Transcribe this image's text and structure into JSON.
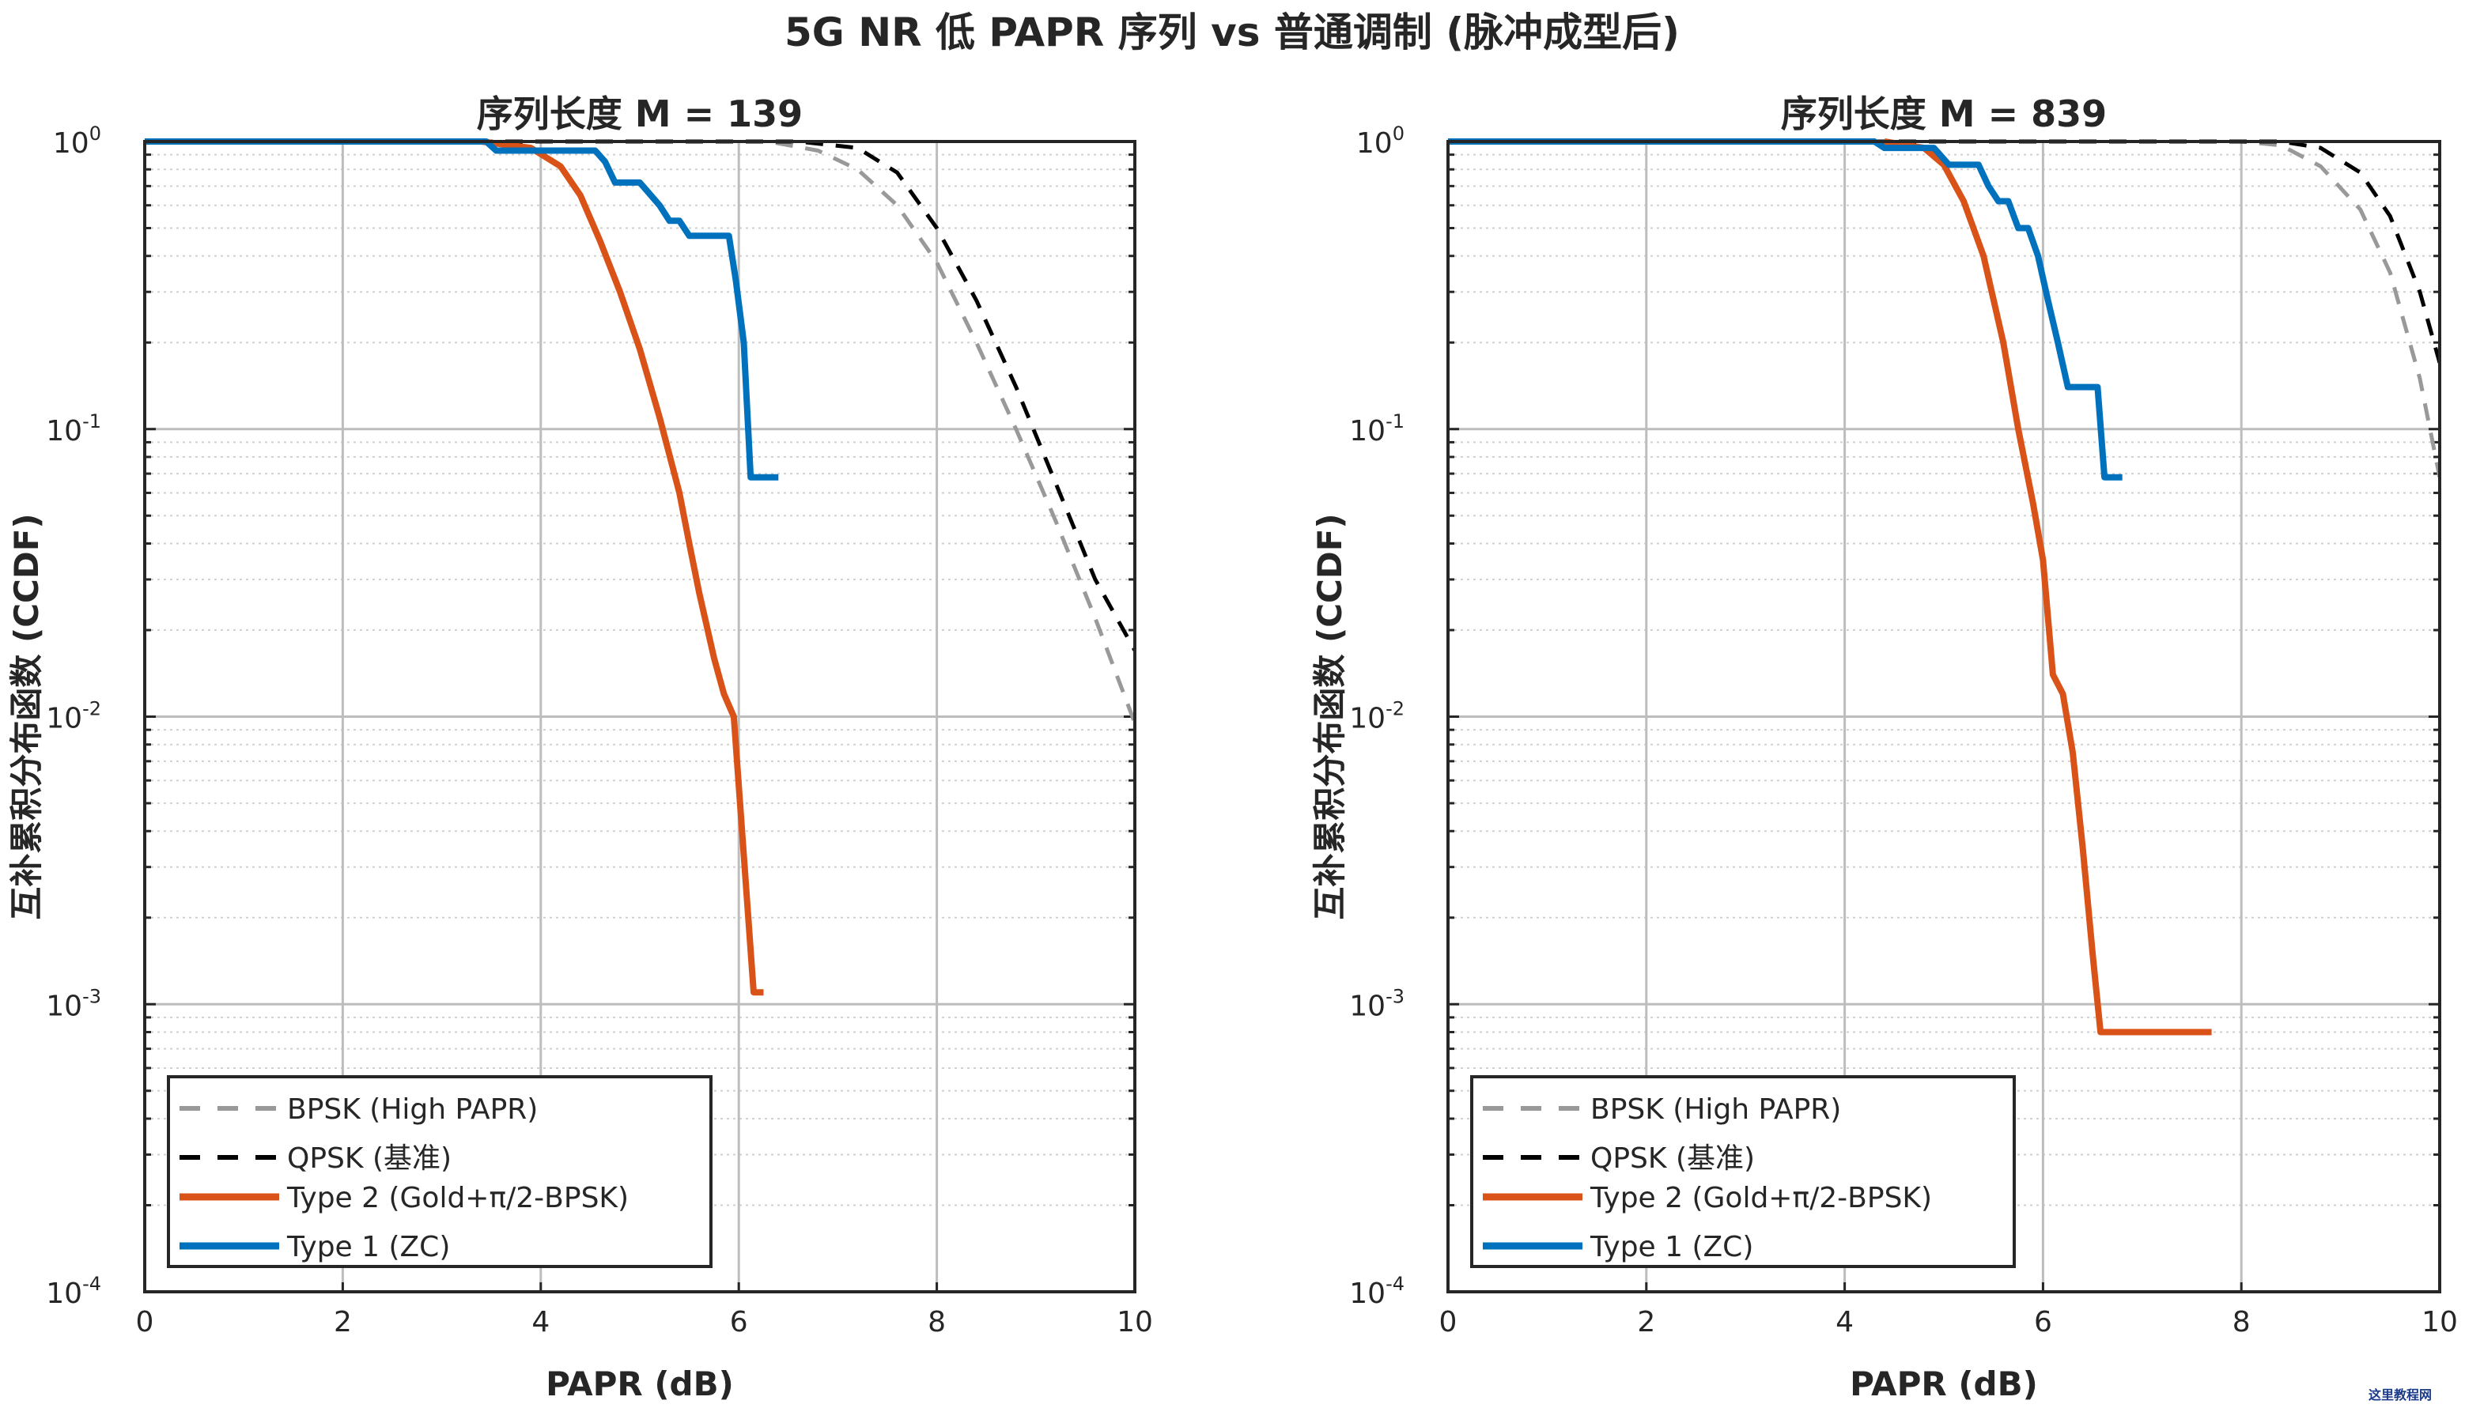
{
  "figure_title": "5G NR 低 PAPR 序列 vs 普通调制 (脉冲成型后)",
  "watermark": "这里教程网",
  "chart_data": [
    {
      "type": "line",
      "title": "序列长度 M = 139",
      "xlabel": "PAPR (dB)",
      "ylabel": "互补累积分布函数 (CCDF)",
      "xlim": [
        0,
        10
      ],
      "ylim": [
        0.0001,
        1
      ],
      "yscale": "log",
      "grid": true,
      "minor_grid": true,
      "legend_position": "bottom-left",
      "x_ticks": [
        "0",
        "2",
        "4",
        "6",
        "8",
        "10"
      ],
      "y_ticks": [
        {
          "base": "10",
          "exp": "0"
        },
        {
          "base": "10",
          "exp": "-1"
        },
        {
          "base": "10",
          "exp": "-2"
        },
        {
          "base": "10",
          "exp": "-3"
        },
        {
          "base": "10",
          "exp": "-4"
        }
      ],
      "series": [
        {
          "name": "BPSK (High PAPR)",
          "color": "#999999",
          "style": "dashed",
          "x": [
            0,
            6.3,
            6.8,
            7.2,
            7.6,
            8.0,
            8.4,
            8.8,
            9.2,
            9.6,
            10.0
          ],
          "y": [
            1,
            1,
            0.93,
            0.8,
            0.6,
            0.38,
            0.2,
            0.1,
            0.048,
            0.022,
            0.0095
          ]
        },
        {
          "name": "QPSK (基准)",
          "color": "#000000",
          "style": "dashed",
          "x": [
            0,
            6.6,
            7.2,
            7.6,
            8.0,
            8.4,
            8.8,
            9.2,
            9.6,
            10.0
          ],
          "y": [
            1,
            1,
            0.95,
            0.78,
            0.5,
            0.28,
            0.14,
            0.065,
            0.03,
            0.017
          ]
        },
        {
          "name": "Type 2 (Gold+π/2-BPSK)",
          "color": "#D95319",
          "style": "solid",
          "x": [
            3.4,
            3.9,
            4.2,
            4.4,
            4.6,
            4.8,
            5.0,
            5.2,
            5.4,
            5.5,
            5.6,
            5.75,
            5.85,
            5.95,
            6.05,
            6.15,
            6.25
          ],
          "y": [
            1,
            0.95,
            0.82,
            0.65,
            0.45,
            0.3,
            0.19,
            0.11,
            0.06,
            0.04,
            0.027,
            0.016,
            0.012,
            0.01,
            0.0033,
            0.0011,
            0.0011
          ]
        },
        {
          "name": "Type 1 (ZC)",
          "color": "#0072BD",
          "style": "solid",
          "x": [
            0,
            3.45,
            3.55,
            4.55,
            4.65,
            4.75,
            5.0,
            5.2,
            5.3,
            5.4,
            5.5,
            5.9,
            5.97,
            6.05,
            6.12,
            6.4
          ],
          "y": [
            1,
            1,
            0.93,
            0.93,
            0.85,
            0.72,
            0.72,
            0.6,
            0.53,
            0.53,
            0.47,
            0.47,
            0.33,
            0.2,
            0.068,
            0.068
          ]
        }
      ],
      "legend": [
        "BPSK (High PAPR)",
        "QPSK (基准)",
        "Type  2  (Gold+π/2-BPSK)",
        "Type 1 (ZC)"
      ]
    },
    {
      "type": "line",
      "title": "序列长度 M = 839",
      "xlabel": "PAPR (dB)",
      "ylabel": "互补累积分布函数 (CCDF)",
      "xlim": [
        0,
        10
      ],
      "ylim": [
        0.0001,
        1
      ],
      "yscale": "log",
      "grid": true,
      "minor_grid": true,
      "legend_position": "bottom-left",
      "x_ticks": [
        "0",
        "2",
        "4",
        "6",
        "8",
        "10"
      ],
      "y_ticks": [
        {
          "base": "10",
          "exp": "0"
        },
        {
          "base": "10",
          "exp": "-1"
        },
        {
          "base": "10",
          "exp": "-2"
        },
        {
          "base": "10",
          "exp": "-3"
        },
        {
          "base": "10",
          "exp": "-4"
        }
      ],
      "series": [
        {
          "name": "BPSK (High PAPR)",
          "color": "#999999",
          "style": "dashed",
          "x": [
            0,
            8.0,
            8.4,
            8.8,
            9.2,
            9.5,
            9.8,
            10.0
          ],
          "y": [
            1,
            1,
            0.97,
            0.82,
            0.58,
            0.35,
            0.15,
            0.068
          ]
        },
        {
          "name": "QPSK (基准)",
          "color": "#000000",
          "style": "dashed",
          "x": [
            0,
            8.4,
            8.8,
            9.2,
            9.5,
            9.8,
            10.0
          ],
          "y": [
            1,
            1,
            0.95,
            0.78,
            0.55,
            0.3,
            0.17
          ]
        },
        {
          "name": "Type 2 (Gold+π/2-BPSK)",
          "color": "#D95319",
          "style": "solid",
          "x": [
            4.4,
            4.8,
            5.0,
            5.2,
            5.4,
            5.6,
            5.75,
            5.9,
            6.0,
            6.1,
            6.2,
            6.3,
            6.4,
            6.5,
            6.58,
            6.65,
            7.7
          ],
          "y": [
            1,
            0.95,
            0.83,
            0.62,
            0.4,
            0.2,
            0.1,
            0.055,
            0.035,
            0.014,
            0.012,
            0.0075,
            0.0035,
            0.0015,
            0.0008,
            0.0008,
            0.0008
          ]
        },
        {
          "name": "Type 1 (ZC)",
          "color": "#0072BD",
          "style": "solid",
          "x": [
            0,
            4.3,
            4.4,
            4.9,
            5.05,
            5.35,
            5.45,
            5.55,
            5.65,
            5.75,
            5.85,
            5.95,
            6.05,
            6.15,
            6.25,
            6.35,
            6.55,
            6.62,
            6.8
          ],
          "y": [
            1,
            1,
            0.95,
            0.95,
            0.83,
            0.83,
            0.7,
            0.62,
            0.62,
            0.5,
            0.5,
            0.4,
            0.28,
            0.2,
            0.14,
            0.14,
            0.14,
            0.068,
            0.068
          ]
        }
      ],
      "legend": [
        "BPSK (High PAPR)",
        "QPSK (基准)",
        "Type  2  (Gold+π/2-BPSK)",
        "Type 1 (ZC)"
      ]
    }
  ]
}
